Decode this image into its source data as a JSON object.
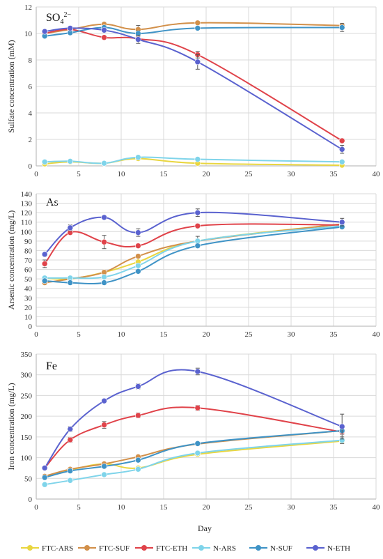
{
  "colors": {
    "FTC-ARS": "#e9d640",
    "FTC-SUF": "#d2904a",
    "FTC-ETH": "#e0434a",
    "N-ARS": "#7fd4ea",
    "N-SUF": "#3f93c6",
    "N-ETH": "#5a62cf",
    "grid": "#d9d9d9",
    "axis": "#bfbfbf"
  },
  "x_axis_label": "Day",
  "chart_data": [
    {
      "type": "line",
      "title": "SO",
      "title_sub": "4",
      "title_sup": "2−",
      "ylabel": "Sulfate concentration (mM)",
      "xlabel": "",
      "xlim": [
        0,
        40
      ],
      "ylim": [
        0,
        12
      ],
      "xticks": [
        0,
        5,
        10,
        15,
        20,
        25,
        30,
        35,
        40
      ],
      "yticks": [
        0,
        2,
        4,
        6,
        8,
        10,
        12
      ],
      "grid": true,
      "x": [
        1,
        4,
        8,
        12,
        19,
        36
      ],
      "series": [
        {
          "name": "FTC-ARS",
          "values": [
            0.15,
            0.3,
            0.2,
            0.55,
            0.2,
            0.05
          ],
          "err": [
            0.05,
            0.05,
            0.05,
            0.1,
            0.05,
            0.05
          ]
        },
        {
          "name": "FTC-SUF",
          "values": [
            10.0,
            10.3,
            10.7,
            10.3,
            10.8,
            10.6
          ],
          "err": [
            0.1,
            0.1,
            0.15,
            0.3,
            0.1,
            0.1
          ]
        },
        {
          "name": "FTC-ETH",
          "values": [
            10.0,
            10.3,
            9.7,
            9.6,
            8.4,
            1.9
          ],
          "err": [
            0.1,
            0.1,
            0.1,
            0.2,
            0.25,
            0.15
          ]
        },
        {
          "name": "N-ARS",
          "values": [
            0.3,
            0.35,
            0.2,
            0.65,
            0.5,
            0.3
          ],
          "err": [
            0.05,
            0.05,
            0.05,
            0.1,
            0.05,
            0.05
          ]
        },
        {
          "name": "N-SUF",
          "values": [
            9.8,
            10.05,
            10.45,
            10.0,
            10.4,
            10.45
          ],
          "err": [
            0.1,
            0.1,
            0.1,
            0.2,
            0.1,
            0.3
          ]
        },
        {
          "name": "N-ETH",
          "values": [
            10.15,
            10.4,
            10.25,
            9.55,
            7.85,
            1.25
          ],
          "err": [
            0.1,
            0.1,
            0.15,
            0.3,
            0.55,
            0.3
          ]
        }
      ]
    },
    {
      "type": "line",
      "title": "As",
      "ylabel": "Arsenic concentration (mg/L)",
      "xlabel": "",
      "xlim": [
        0,
        40
      ],
      "ylim": [
        0,
        140
      ],
      "xticks": [
        0,
        5,
        10,
        15,
        20,
        25,
        30,
        35,
        40
      ],
      "yticks": [
        0,
        10,
        20,
        30,
        40,
        50,
        60,
        70,
        80,
        90,
        100,
        110,
        120,
        130,
        140
      ],
      "grid": true,
      "x": [
        1,
        4,
        8,
        12,
        19,
        36
      ],
      "series": [
        {
          "name": "FTC-ARS",
          "values": [
            51,
            50,
            57,
            68,
            90,
            108
          ],
          "err": [
            1,
            1,
            2,
            2,
            2,
            2
          ]
        },
        {
          "name": "FTC-SUF",
          "values": [
            46,
            50,
            57,
            74,
            90,
            108
          ],
          "err": [
            1,
            1,
            2,
            2,
            2,
            2
          ]
        },
        {
          "name": "FTC-ETH",
          "values": [
            66,
            99,
            89,
            85,
            106,
            107
          ],
          "err": [
            4,
            2,
            7,
            2,
            2,
            2
          ]
        },
        {
          "name": "N-ARS",
          "values": [
            51,
            51,
            52,
            64,
            90,
            106
          ],
          "err": [
            1,
            1,
            2,
            2,
            5,
            2
          ]
        },
        {
          "name": "N-SUF",
          "values": [
            48,
            46,
            46,
            58,
            85,
            105
          ],
          "err": [
            1,
            1,
            1,
            2,
            2,
            2
          ]
        },
        {
          "name": "N-ETH",
          "values": [
            76,
            104,
            115,
            99,
            120,
            110
          ],
          "err": [
            2,
            3,
            2,
            4,
            4,
            4
          ]
        }
      ]
    },
    {
      "type": "line",
      "title": "Fe",
      "ylabel": "Iron concentration (mg/L)",
      "xlabel": "Day",
      "xlim": [
        0,
        40
      ],
      "ylim": [
        0,
        350
      ],
      "xticks": [
        0,
        5,
        10,
        15,
        20,
        25,
        30,
        35,
        40
      ],
      "yticks": [
        0,
        50,
        100,
        150,
        200,
        250,
        300,
        350
      ],
      "grid": true,
      "x": [
        1,
        4,
        8,
        12,
        19,
        36
      ],
      "series": [
        {
          "name": "FTC-ARS",
          "values": [
            52,
            70,
            85,
            75,
            108,
            140
          ],
          "err": [
            2,
            2,
            3,
            3,
            3,
            5
          ]
        },
        {
          "name": "FTC-SUF",
          "values": [
            55,
            72,
            85,
            102,
            133,
            165
          ],
          "err": [
            2,
            3,
            3,
            4,
            3,
            5
          ]
        },
        {
          "name": "FTC-ETH",
          "values": [
            75,
            143,
            179,
            202,
            220,
            162
          ],
          "err": [
            3,
            6,
            8,
            6,
            6,
            6
          ]
        },
        {
          "name": "N-ARS",
          "values": [
            35,
            45,
            59,
            72,
            111,
            142
          ],
          "err": [
            2,
            2,
            3,
            3,
            4,
            8
          ]
        },
        {
          "name": "N-SUF",
          "values": [
            52,
            68,
            79,
            94,
            134,
            165
          ],
          "err": [
            2,
            3,
            3,
            4,
            4,
            5
          ]
        },
        {
          "name": "N-ETH",
          "values": [
            75,
            169,
            237,
            272,
            308,
            175
          ],
          "err": [
            4,
            6,
            4,
            6,
            8,
            30
          ]
        }
      ]
    }
  ],
  "legend": [
    "FTC-ARS",
    "FTC-SUF",
    "FTC-ETH",
    "N-ARS",
    "N-SUF",
    "N-ETH"
  ]
}
